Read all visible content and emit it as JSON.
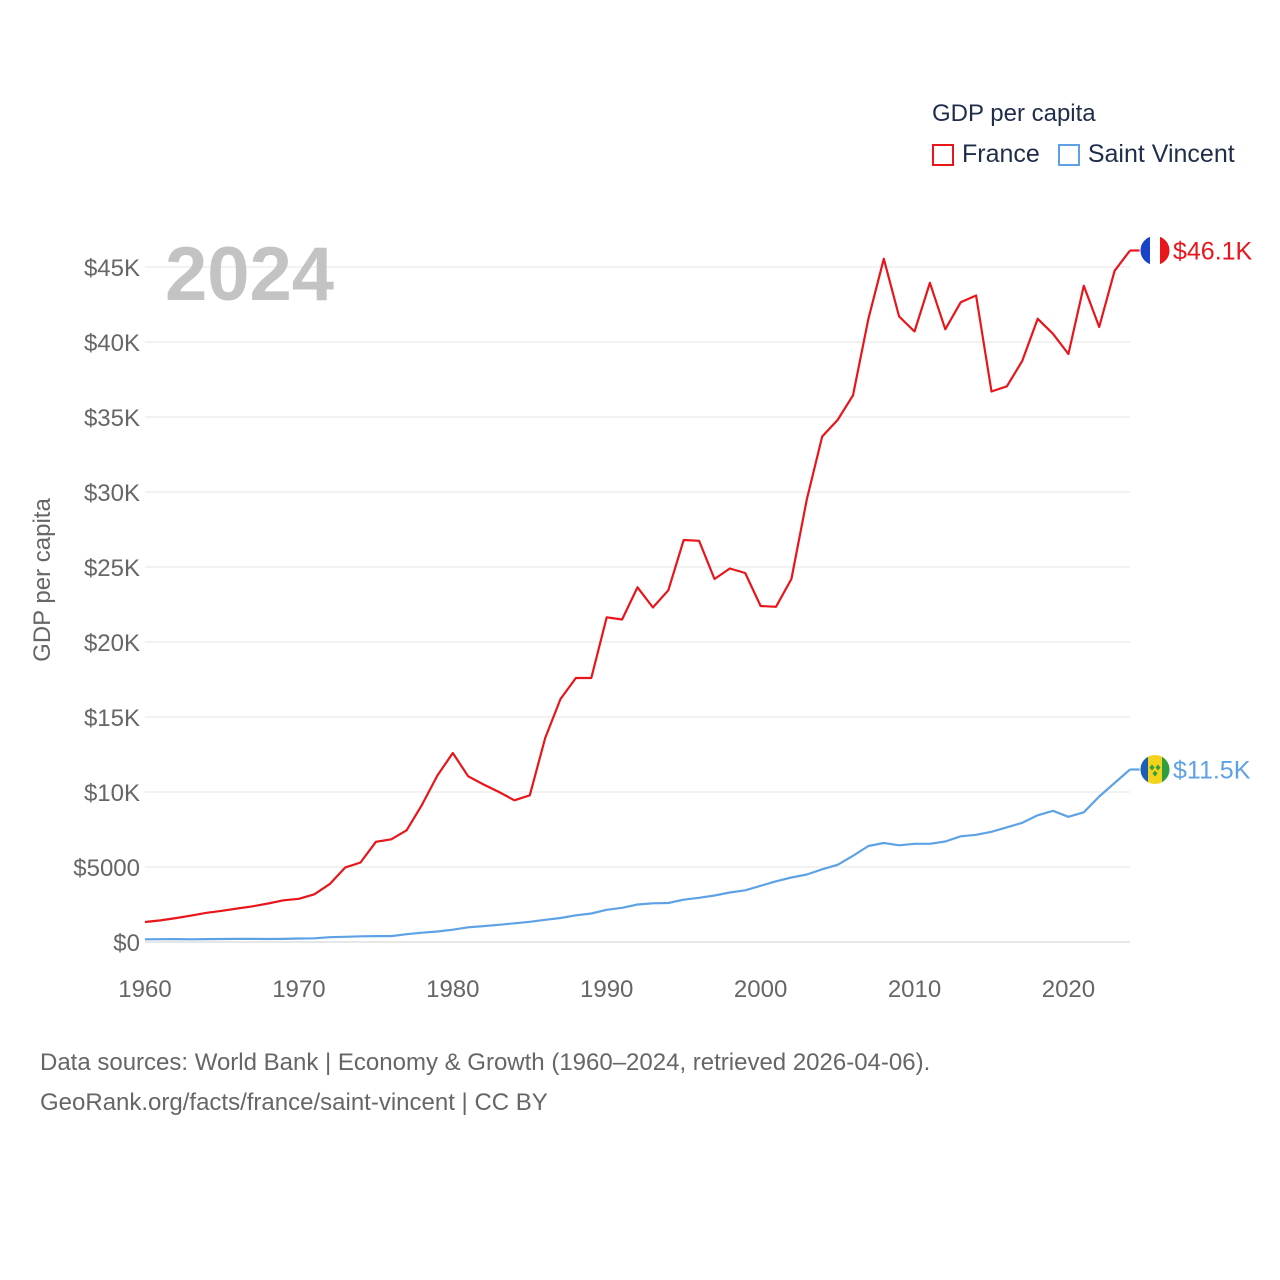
{
  "chart_data": {
    "type": "line",
    "title": "GDP per capita",
    "year_label": "2024",
    "ylabel": "GDP per capita",
    "xlabel": "",
    "xlim": [
      1960,
      2024
    ],
    "ylim": [
      0,
      45000
    ],
    "x_ticks": [
      1960,
      1970,
      1980,
      1990,
      2000,
      2010,
      2020
    ],
    "y_ticks": [
      {
        "value": 0,
        "label": "$0"
      },
      {
        "value": 5000,
        "label": "$5000"
      },
      {
        "value": 10000,
        "label": "$10K"
      },
      {
        "value": 15000,
        "label": "$15K"
      },
      {
        "value": 20000,
        "label": "$20K"
      },
      {
        "value": 25000,
        "label": "$25K"
      },
      {
        "value": 30000,
        "label": "$30K"
      },
      {
        "value": 35000,
        "label": "$35K"
      },
      {
        "value": 40000,
        "label": "$40K"
      },
      {
        "value": 45000,
        "label": "$45K"
      }
    ],
    "x": [
      1960,
      1961,
      1962,
      1963,
      1964,
      1965,
      1966,
      1967,
      1968,
      1969,
      1970,
      1971,
      1972,
      1973,
      1974,
      1975,
      1976,
      1977,
      1978,
      1979,
      1980,
      1981,
      1982,
      1983,
      1984,
      1985,
      1986,
      1987,
      1988,
      1989,
      1990,
      1991,
      1992,
      1993,
      1994,
      1995,
      1996,
      1997,
      1998,
      1999,
      2000,
      2001,
      2002,
      2003,
      2004,
      2005,
      2006,
      2007,
      2008,
      2009,
      2010,
      2011,
      2012,
      2013,
      2014,
      2015,
      2016,
      2017,
      2018,
      2019,
      2020,
      2021,
      2022,
      2023,
      2024
    ],
    "series": [
      {
        "name": "France",
        "color": "#e8151b",
        "end_label": "$46.1K",
        "flag": "france-flag-icon",
        "values": [
          1330,
          1440,
          1590,
          1760,
          1950,
          2080,
          2230,
          2380,
          2570,
          2780,
          2880,
          3180,
          3860,
          4960,
          5300,
          6680,
          6850,
          7450,
          9150,
          11100,
          12600,
          11050,
          10500,
          10000,
          9450,
          9780,
          13600,
          16200,
          17600,
          17600,
          21650,
          21500,
          23650,
          22300,
          23450,
          26800,
          26750,
          24200,
          24900,
          24600,
          22400,
          22350,
          24200,
          29500,
          33700,
          34800,
          36450,
          41550,
          45550,
          41700,
          40700,
          43950,
          40850,
          42650,
          43100,
          36700,
          37050,
          38750,
          41550,
          40550,
          39200,
          43750,
          41000,
          44750,
          46100
        ]
      },
      {
        "name": "Saint Vincent",
        "color": "#5ea2e6",
        "end_label": "$11.5K",
        "flag": "saint-vincent-flag-icon",
        "values": [
          180,
          185,
          190,
          180,
          190,
          200,
          210,
          205,
          200,
          210,
          230,
          250,
          320,
          350,
          380,
          390,
          390,
          520,
          620,
          700,
          820,
          980,
          1060,
          1150,
          1250,
          1350,
          1480,
          1600,
          1780,
          1900,
          2150,
          2280,
          2500,
          2580,
          2600,
          2820,
          2950,
          3100,
          3300,
          3450,
          3750,
          4050,
          4300,
          4500,
          4850,
          5150,
          5750,
          6400,
          6600,
          6450,
          6550,
          6550,
          6700,
          7050,
          7150,
          7350,
          7650,
          7950,
          8450,
          8750,
          8350,
          8650,
          9700,
          10600,
          11500
        ]
      }
    ]
  },
  "legend": {
    "title": "GDP per capita",
    "items": [
      {
        "label": "France",
        "color": "#e8151b"
      },
      {
        "label": "Saint Vincent",
        "color": "#5ea2e6"
      }
    ]
  },
  "footer": {
    "line1": "Data sources: World Bank | Economy & Growth (1960–2024, retrieved 2026-04-06).",
    "line2": "GeoRank.org/facts/france/saint-vincent | CC BY"
  }
}
